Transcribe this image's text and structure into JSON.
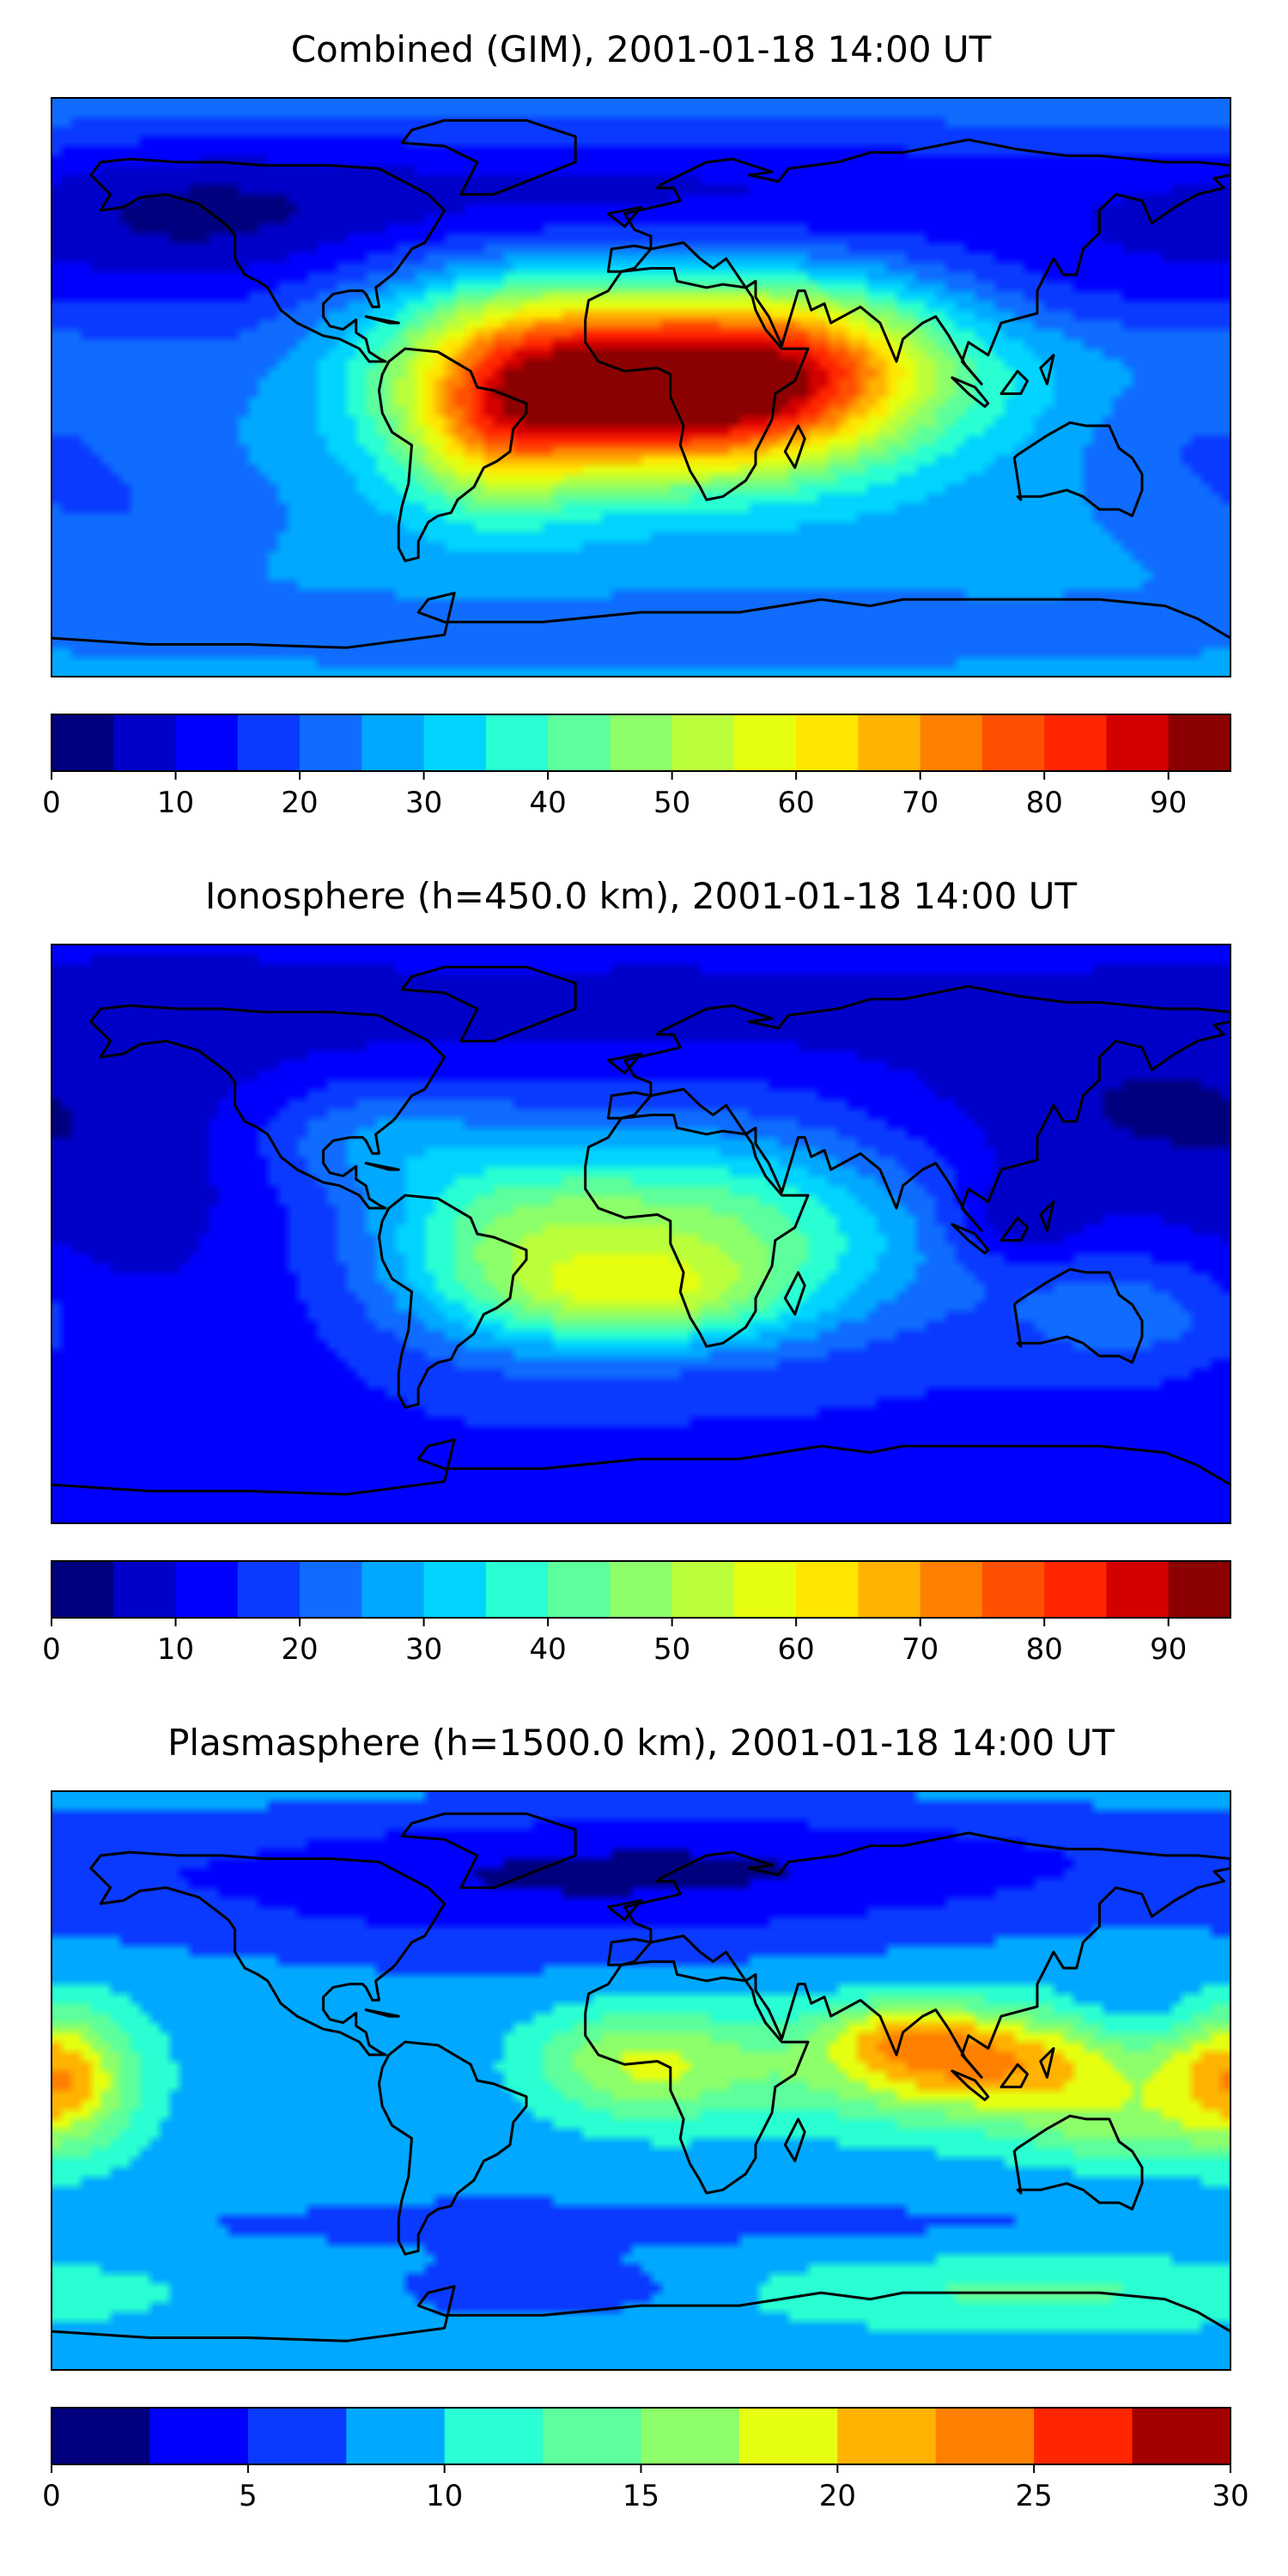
{
  "chart_data": [
    {
      "type": "heatmap",
      "map": "filled contour world map",
      "title": "Combined (GIM), 2001-01-18 14:00 UT",
      "colorbar": {
        "vmin": 0,
        "vmax": 95,
        "step": 5,
        "ticks": [
          0,
          10,
          20,
          30,
          40,
          50,
          60,
          70,
          80,
          90
        ],
        "tick_labels": [
          "0",
          "10",
          "20",
          "30",
          "40",
          "50",
          "60",
          "70",
          "80",
          "90"
        ],
        "colors": [
          "#00007f",
          "#0000c8",
          "#0000ff",
          "#0a3aff",
          "#0f6cff",
          "#00a8ff",
          "#00d4ff",
          "#29ffd3",
          "#5dff9c",
          "#8cff6a",
          "#bbff3b",
          "#e6ff10",
          "#ffe600",
          "#ffb300",
          "#ff8000",
          "#ff4f00",
          "#ff2600",
          "#d40000",
          "#8b0000"
        ]
      },
      "background_value": 27,
      "field": [
        {
          "lon": 10,
          "lat": 8,
          "value": 48,
          "rlon": 55,
          "rlat": 18
        },
        {
          "lon": 15,
          "lat": -8,
          "value": 38,
          "rlon": 40,
          "rlat": 16
        },
        {
          "lon": -40,
          "lat": -5,
          "value": 22,
          "rlon": 22,
          "rlat": 22
        },
        {
          "lon": -50,
          "lat": -20,
          "value": 10,
          "rlon": 18,
          "rlat": 14
        },
        {
          "lon": 55,
          "lat": 10,
          "value": 10,
          "rlon": 22,
          "rlat": 14
        },
        {
          "lon": 0,
          "lat": 60,
          "value": -18,
          "rlon": 150,
          "rlat": 18
        },
        {
          "lon": -150,
          "lat": 50,
          "value": -12,
          "rlon": 50,
          "rlat": 20
        },
        {
          "lon": 135,
          "lat": 30,
          "value": -8,
          "rlon": 40,
          "rlat": 14
        },
        {
          "lon": -120,
          "lat": 15,
          "value": -6,
          "rlon": 30,
          "rlat": 20
        },
        {
          "lon": -160,
          "lat": -40,
          "value": -6,
          "rlon": 35,
          "rlat": 15
        },
        {
          "lon": 170,
          "lat": -15,
          "value": -6,
          "rlon": 30,
          "rlat": 15
        },
        {
          "lon": 0,
          "lat": -75,
          "value": -4,
          "rlon": 180,
          "rlat": 10
        }
      ]
    },
    {
      "type": "heatmap",
      "map": "filled contour world map",
      "title": "Ionosphere  (h=450.0 km), 2001-01-18 14:00 UT",
      "colorbar": {
        "vmin": 0,
        "vmax": 95,
        "step": 5,
        "ticks": [
          0,
          10,
          20,
          30,
          40,
          50,
          60,
          70,
          80,
          90
        ],
        "tick_labels": [
          "0",
          "10",
          "20",
          "30",
          "40",
          "50",
          "60",
          "70",
          "80",
          "90"
        ],
        "colors": [
          "#00007f",
          "#0000c8",
          "#0000ff",
          "#0a3aff",
          "#0f6cff",
          "#00a8ff",
          "#00d4ff",
          "#29ffd3",
          "#5dff9c",
          "#8cff6a",
          "#bbff3b",
          "#e6ff10",
          "#ffe600",
          "#ffb300",
          "#ff8000",
          "#ff4f00",
          "#ff2600",
          "#d40000",
          "#8b0000"
        ]
      },
      "background_value": 14,
      "field": [
        {
          "lon": 10,
          "lat": 0,
          "value": 33,
          "rlon": 55,
          "rlat": 22
        },
        {
          "lon": 0,
          "lat": -20,
          "value": 20,
          "rlon": 30,
          "rlat": 10
        },
        {
          "lon": -45,
          "lat": -5,
          "value": 12,
          "rlon": 25,
          "rlat": 22
        },
        {
          "lon": -85,
          "lat": 30,
          "value": 10,
          "rlon": 25,
          "rlat": 12
        },
        {
          "lon": -150,
          "lat": 20,
          "value": -6,
          "rlon": 40,
          "rlat": 45
        },
        {
          "lon": 135,
          "lat": 35,
          "value": -8,
          "rlon": 45,
          "rlat": 22
        },
        {
          "lon": 115,
          "lat": 5,
          "value": -10,
          "rlon": 15,
          "rlat": 10
        },
        {
          "lon": 0,
          "lat": 70,
          "value": -6,
          "rlon": 160,
          "rlat": 14
        },
        {
          "lon": 150,
          "lat": -25,
          "value": 10,
          "rlon": 25,
          "rlat": 12
        }
      ]
    },
    {
      "type": "heatmap",
      "map": "filled contour world map",
      "title": "Plasmasphere (h=1500.0 km), 2001-01-18 14:00 UT",
      "colorbar": {
        "vmin": 0,
        "vmax": 30,
        "step": 2.5,
        "ticks": [
          0,
          5,
          10,
          15,
          20,
          25,
          30
        ],
        "tick_labels": [
          "0",
          "5",
          "10",
          "15",
          "20",
          "25",
          "30"
        ],
        "colors": [
          "#00007f",
          "#0000ff",
          "#0a3aff",
          "#00a8ff",
          "#29ffd3",
          "#5dff9c",
          "#8cff6a",
          "#e6ff10",
          "#ffb300",
          "#ff8000",
          "#ff2600",
          "#a30000"
        ]
      },
      "background_value": 9,
      "field": [
        {
          "lon": 105,
          "lat": 5,
          "value": 14,
          "rlon": 40,
          "rlat": 12
        },
        {
          "lon": 80,
          "lat": 15,
          "value": 6,
          "rlon": 15,
          "rlat": 7
        },
        {
          "lon": 145,
          "lat": -15,
          "value": 5,
          "rlon": 20,
          "rlat": 8
        },
        {
          "lon": 0,
          "lat": 5,
          "value": 9,
          "rlon": 25,
          "rlat": 12
        },
        {
          "lon": -175,
          "lat": 0,
          "value": 6,
          "rlon": 15,
          "rlat": 15
        },
        {
          "lon": 180,
          "lat": 0,
          "value": 6,
          "rlon": 15,
          "rlat": 15
        },
        {
          "lon": -30,
          "lat": 60,
          "value": -5,
          "rlon": 110,
          "rlat": 16
        },
        {
          "lon": 60,
          "lat": 70,
          "value": -3,
          "rlon": 120,
          "rlat": 12
        },
        {
          "lon": 150,
          "lat": 20,
          "value": -3,
          "rlon": 15,
          "rlat": 10
        },
        {
          "lon": -50,
          "lat": 0,
          "value": -1,
          "rlon": 30,
          "rlat": 25
        },
        {
          "lon": 0,
          "lat": -45,
          "value": -2,
          "rlon": 180,
          "rlat": 8
        },
        {
          "lon": -30,
          "lat": -65,
          "value": -4,
          "rlon": 30,
          "rlat": 6
        },
        {
          "lon": 120,
          "lat": -65,
          "value": 4,
          "rlon": 60,
          "rlat": 8
        }
      ]
    }
  ]
}
